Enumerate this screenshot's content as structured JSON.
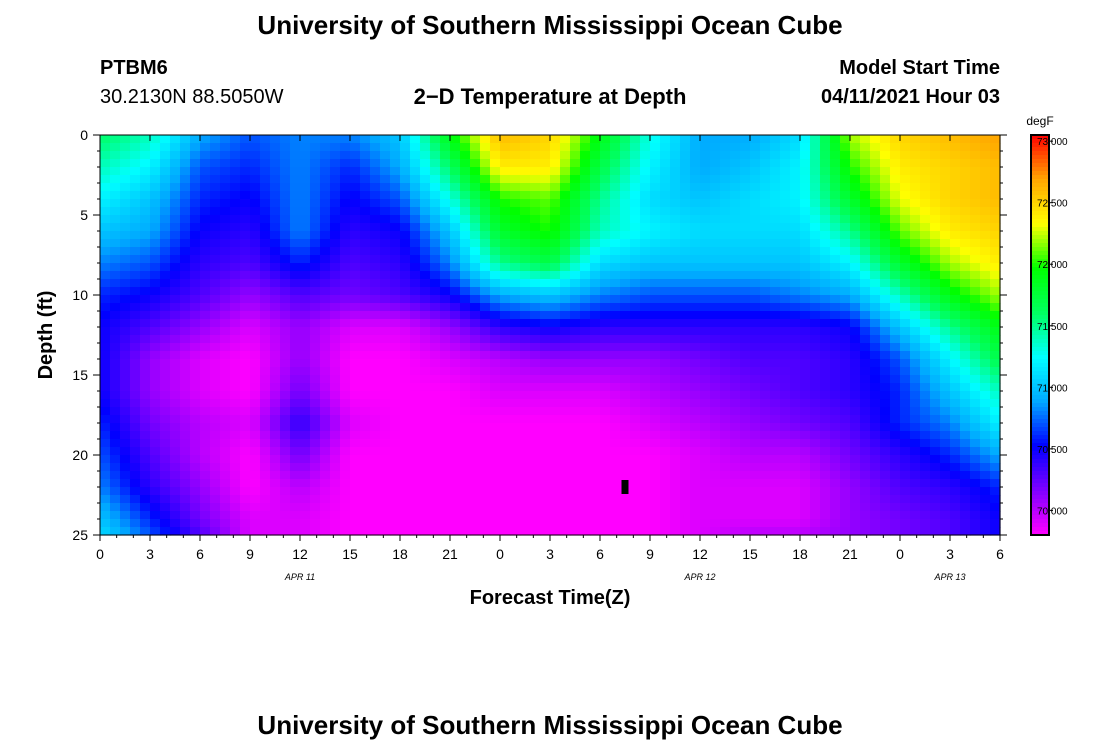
{
  "header": {
    "title": "University of Southern Mississippi Ocean Cube",
    "station_id": "PTBM6",
    "station_coords": "30.2130N  88.5050W",
    "product": "2−D Temperature at Depth",
    "model_start_label": "Model Start Time",
    "model_start_value": "04/11/2021 Hour 03"
  },
  "footer": {
    "title": "University of Southern Mississippi Ocean Cube"
  },
  "chart_data": {
    "type": "heatmap",
    "title": "2−D Temperature at Depth",
    "xlabel": "Forecast Time(Z)",
    "ylabel": "Depth (ft)",
    "x_tick_labels": [
      "0",
      "3",
      "6",
      "9",
      "12",
      "15",
      "18",
      "21",
      "0",
      "3",
      "6",
      "9",
      "12",
      "15",
      "18",
      "21",
      "0",
      "3",
      "6"
    ],
    "x_range_hours": [
      0,
      54
    ],
    "date_labels": [
      {
        "text": "APR 11",
        "at_hour": 12
      },
      {
        "text": "APR 12",
        "at_hour": 36
      },
      {
        "text": "APR 13",
        "at_hour": 51
      }
    ],
    "y_ticks": [
      0,
      5,
      10,
      15,
      20,
      25
    ],
    "y_range": [
      0,
      25
    ],
    "y_inverted": true,
    "colorbar": {
      "unit": "degF",
      "range": [
        69.8,
        73.05
      ],
      "tick_values": [
        70.0,
        70.5,
        71.0,
        71.5,
        72.0,
        72.5,
        73.0
      ],
      "tick_labels": [
        "70.000",
        "70.500",
        "71.000",
        "71.500",
        "72.000",
        "72.500",
        "73.000"
      ],
      "colors": [
        "#ff00ff",
        "#7f00ff",
        "#0000ff",
        "#00a8ff",
        "#00ffff",
        "#00ff60",
        "#00ff00",
        "#ffff00",
        "#ffa500",
        "#ff0000"
      ]
    },
    "depths_ft": [
      0,
      2,
      4,
      6,
      8,
      10,
      12,
      14,
      16,
      18,
      20,
      22,
      24,
      25
    ],
    "times_hr": [
      0,
      3,
      6,
      9,
      12,
      15,
      18,
      21,
      24,
      27,
      30,
      33,
      36,
      39,
      42,
      45,
      48,
      51,
      54
    ],
    "temperature_degF": [
      [
        71.6,
        71.4,
        70.9,
        70.7,
        70.8,
        70.8,
        71.0,
        71.9,
        72.6,
        72.5,
        71.9,
        71.3,
        70.9,
        70.9,
        71.1,
        72.2,
        72.5,
        72.6,
        72.7
      ],
      [
        71.4,
        71.2,
        70.7,
        70.6,
        70.8,
        70.6,
        70.9,
        71.6,
        72.4,
        72.4,
        71.7,
        71.2,
        70.9,
        71.0,
        71.2,
        72.0,
        72.4,
        72.5,
        72.6
      ],
      [
        71.2,
        71.0,
        70.6,
        70.5,
        70.8,
        70.5,
        70.7,
        71.3,
        72.0,
        72.1,
        71.5,
        71.1,
        71.0,
        71.1,
        71.2,
        71.8,
        72.3,
        72.5,
        72.6
      ],
      [
        71.0,
        70.9,
        70.5,
        70.4,
        70.8,
        70.4,
        70.5,
        71.0,
        71.8,
        72.0,
        71.4,
        71.2,
        71.1,
        71.1,
        71.1,
        71.5,
        72.1,
        72.4,
        72.5
      ],
      [
        70.8,
        70.7,
        70.4,
        70.3,
        70.6,
        70.3,
        70.4,
        70.8,
        71.5,
        71.7,
        71.1,
        71.0,
        71.0,
        71.0,
        71.0,
        71.2,
        71.8,
        72.2,
        72.4
      ],
      [
        70.6,
        70.5,
        70.3,
        70.1,
        70.3,
        70.2,
        70.3,
        70.5,
        70.9,
        71.0,
        70.8,
        70.7,
        70.7,
        70.7,
        70.8,
        70.9,
        71.4,
        71.9,
        72.2
      ],
      [
        70.5,
        70.3,
        70.1,
        69.9,
        70.1,
        69.9,
        69.9,
        70.1,
        70.4,
        70.5,
        70.4,
        70.4,
        70.4,
        70.4,
        70.4,
        70.5,
        71.0,
        71.5,
        71.9
      ],
      [
        70.5,
        70.1,
        69.9,
        69.8,
        70.1,
        69.8,
        69.8,
        69.9,
        70.0,
        70.1,
        70.1,
        70.1,
        70.2,
        70.3,
        70.3,
        70.4,
        70.7,
        71.2,
        71.7
      ],
      [
        70.5,
        70.1,
        69.9,
        69.8,
        70.2,
        69.8,
        69.8,
        69.8,
        69.9,
        69.9,
        69.9,
        70.0,
        70.1,
        70.2,
        70.3,
        70.4,
        70.6,
        71.0,
        71.4
      ],
      [
        70.6,
        70.2,
        70.0,
        69.9,
        70.4,
        69.9,
        69.8,
        69.8,
        69.8,
        69.8,
        69.8,
        69.9,
        70.0,
        70.1,
        70.2,
        70.3,
        70.6,
        70.8,
        71.2
      ],
      [
        70.7,
        70.3,
        70.0,
        69.8,
        70.2,
        69.8,
        69.8,
        69.8,
        69.8,
        69.8,
        69.8,
        69.8,
        69.9,
        70.0,
        70.0,
        70.2,
        70.4,
        70.6,
        70.9
      ],
      [
        70.8,
        70.4,
        70.1,
        69.8,
        70.0,
        69.8,
        69.8,
        69.8,
        69.8,
        69.8,
        69.8,
        69.8,
        69.9,
        69.9,
        69.9,
        70.1,
        70.3,
        70.4,
        70.6
      ],
      [
        71.0,
        70.6,
        70.2,
        69.9,
        69.9,
        69.8,
        69.8,
        69.8,
        69.8,
        69.8,
        69.8,
        69.8,
        69.9,
        69.9,
        69.9,
        70.1,
        70.2,
        70.3,
        70.5
      ],
      [
        71.1,
        70.7,
        70.3,
        69.9,
        69.9,
        69.8,
        69.8,
        69.8,
        69.8,
        69.8,
        69.8,
        69.8,
        69.9,
        70.0,
        70.0,
        70.1,
        70.2,
        70.3,
        70.5
      ]
    ],
    "marker": {
      "time_hr": 31.5,
      "depth_ft": 22
    }
  }
}
